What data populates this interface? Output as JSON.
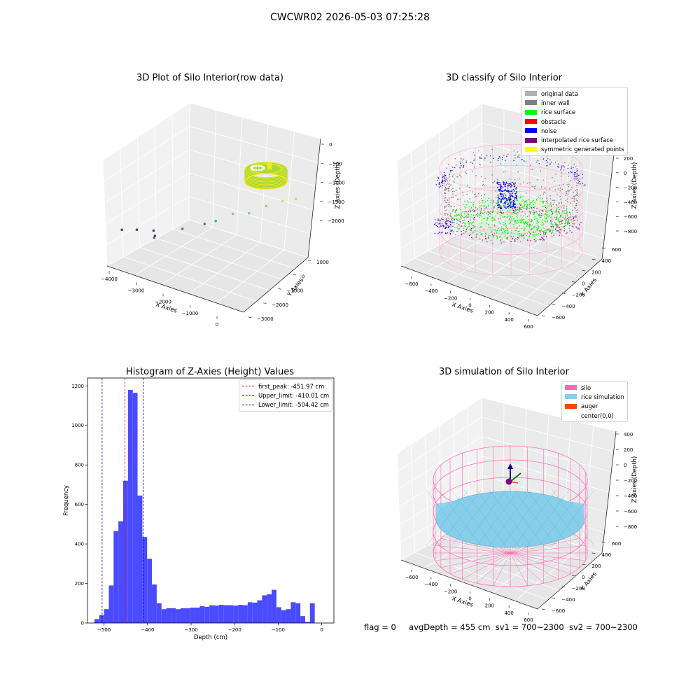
{
  "figure": {
    "title": "CWCWR02 2026-05-03 07:25:28",
    "status": {
      "flag": "flag = 0",
      "avg_depth": "avgDepth = 455 cm",
      "sv1": "sv1 = 700~2300",
      "sv2": "sv2 = 700~2300"
    }
  },
  "chart_data": [
    {
      "type": "scatter",
      "title": "3D Plot of Silo Interior(row data)",
      "xlabel": "X Axies",
      "ylabel": "Y Axies",
      "zlabel": "Z Axies (Depth)",
      "x_ticks": [
        "−4000",
        "−3000",
        "−2000",
        "−1000",
        "0"
      ],
      "y_ticks": [
        "1000",
        "0",
        "−1000",
        "−2000",
        "−3000"
      ],
      "z_ticks": [
        "0",
        "−500",
        "−1000",
        "−1500",
        "−2000"
      ],
      "colormap": "viridis",
      "points_approx": [
        {
          "x": -3600,
          "y": -2700,
          "z": -2100
        },
        {
          "x": -3300,
          "y": -2500,
          "z": -2100
        },
        {
          "x": -3000,
          "y": -2200,
          "z": -2100
        },
        {
          "x": -3900,
          "y": -500,
          "z": -1700
        },
        {
          "x": -3500,
          "y": -1200,
          "z": -1900
        },
        {
          "x": -2800,
          "y": -1100,
          "z": -1800
        },
        {
          "x": -2300,
          "y": -900,
          "z": -1700
        },
        {
          "x": -2100,
          "y": -700,
          "z": -1600
        },
        {
          "x": -1900,
          "y": -200,
          "z": -1300
        },
        {
          "x": -1400,
          "y": -300,
          "z": -1400
        },
        {
          "x": -1200,
          "y": 200,
          "z": -1100
        },
        {
          "x": -800,
          "y": 300,
          "z": -1000
        },
        {
          "x": -600,
          "y": 600,
          "z": -900
        }
      ],
      "ring_cluster": {
        "x_center": 0,
        "y_center": 0,
        "z": -800,
        "colors": [
          "#c8e020",
          "#fde725",
          "#7ad151"
        ]
      }
    },
    {
      "type": "scatter",
      "title": "3D classify of Silo Interior",
      "xlabel": "X Axies",
      "ylabel": "Y Axies",
      "zlabel": "Z Axies (Depth)",
      "x_ticks": [
        "−600",
        "−400",
        "−200",
        "0",
        "200",
        "400",
        "600"
      ],
      "y_ticks": [
        "600",
        "400",
        "200",
        "0",
        "−200",
        "−400",
        "−600"
      ],
      "z_ticks": [
        "200",
        "0",
        "−200",
        "−400",
        "−600",
        "−800"
      ],
      "legend": [
        {
          "label": "original data",
          "color": "#b0b0b0"
        },
        {
          "label": "inner wall",
          "color": "#808080"
        },
        {
          "label": "rice surface",
          "color": "#00ff00"
        },
        {
          "label": "obstacle",
          "color": "#ff0000"
        },
        {
          "label": "noise",
          "color": "#0000ff"
        },
        {
          "label": "interpolated rice surface",
          "color": "#800080"
        },
        {
          "label": "symmetric generated points",
          "color": "#ffff00"
        }
      ]
    },
    {
      "type": "bar",
      "title": "Histogram of Z-Axies (Height) Values",
      "xlabel": "Depth (cm)",
      "ylabel": "Frequency",
      "bar_color": "#4a4aff",
      "xlim": [
        -538,
        28
      ],
      "ylim": [
        0,
        1240
      ],
      "x_ticks": [
        {
          "v": -500,
          "label": "−500"
        },
        {
          "v": -400,
          "label": "−400"
        },
        {
          "v": -300,
          "label": "−300"
        },
        {
          "v": -200,
          "label": "−200"
        },
        {
          "v": -100,
          "label": "−100"
        },
        {
          "v": 0,
          "label": "0"
        }
      ],
      "y_ticks": [
        {
          "v": 0,
          "label": "0"
        },
        {
          "v": 200,
          "label": "200"
        },
        {
          "v": 400,
          "label": "400"
        },
        {
          "v": 600,
          "label": "600"
        },
        {
          "v": 800,
          "label": "800"
        },
        {
          "v": 1000,
          "label": "1000"
        },
        {
          "v": 1200,
          "label": "1200"
        }
      ],
      "bin_start": -522,
      "bin_width": 11,
      "values": [
        20,
        40,
        70,
        190,
        465,
        515,
        720,
        1180,
        1165,
        645,
        435,
        325,
        195,
        100,
        70,
        75,
        75,
        70,
        75,
        75,
        78,
        78,
        85,
        82,
        90,
        88,
        92,
        90,
        90,
        88,
        92,
        90,
        105,
        103,
        115,
        140,
        145,
        168,
        80,
        65,
        70,
        105,
        100,
        35,
        5,
        100
      ],
      "vlines": [
        {
          "label": "first_peak: -451.97 cm",
          "value": -451.97,
          "color": "#ff0000"
        },
        {
          "label": "Upper_limit: -410.01 cm",
          "value": -410.01,
          "color": "#0000ff"
        },
        {
          "label": "Lower_limit: -504.42 cm",
          "value": -504.42,
          "color": "#0000ff"
        }
      ]
    },
    {
      "type": "scatter",
      "title": "3D simulation of Silo Interior",
      "xlabel": "X Axies",
      "ylabel": "Y Axies",
      "zlabel": "Z Axies (Depth)",
      "x_ticks": [
        "−600",
        "−400",
        "−200",
        "0",
        "200",
        "400",
        "600"
      ],
      "y_ticks": [
        "600",
        "400",
        "200",
        "0",
        "−200",
        "−400",
        "−600"
      ],
      "z_ticks": [
        "400",
        "200",
        "0",
        "−200",
        "−400",
        "−600",
        "−800"
      ],
      "legend": [
        {
          "label": "silo",
          "color": "#ff69b4"
        },
        {
          "label": "rice simulation",
          "color": "#87ceeb"
        },
        {
          "label": "auger",
          "color": "#ff4500"
        },
        {
          "label": "center(0,0)",
          "color": ""
        }
      ]
    }
  ]
}
